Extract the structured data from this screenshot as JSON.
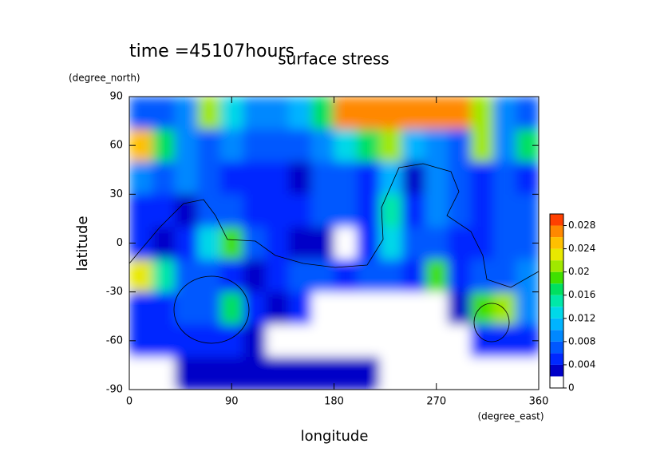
{
  "chart_data": {
    "type": "contour",
    "annotation": "time =45107hours",
    "title": "surface stress",
    "x_label": "longitude",
    "x_unit": "(degree_east)",
    "y_label": "latitude",
    "y_unit": "(degree_north)",
    "xlim": [
      0,
      360
    ],
    "xticks": [
      0,
      90,
      180,
      270,
      360
    ],
    "ylim": [
      -90,
      90
    ],
    "yticks": [
      -90,
      -60,
      -30,
      0,
      30,
      60,
      90
    ],
    "x": [
      10,
      30,
      50,
      70,
      90,
      110,
      130,
      150,
      170,
      190,
      210,
      230,
      250,
      270,
      290,
      310,
      330,
      350
    ],
    "y": [
      80,
      60,
      40,
      20,
      0,
      -20,
      -40,
      -60,
      -80
    ],
    "z": [
      [
        0.006,
        0.006,
        0.008,
        0.02,
        0.012,
        0.008,
        0.008,
        0.01,
        0.016,
        0.026,
        0.026,
        0.026,
        0.026,
        0.026,
        0.026,
        0.02,
        0.008,
        0.006
      ],
      [
        0.024,
        0.016,
        0.008,
        0.006,
        0.008,
        0.006,
        0.006,
        0.006,
        0.008,
        0.012,
        0.016,
        0.02,
        0.01,
        0.008,
        0.006,
        0.02,
        0.008,
        0.016
      ],
      [
        0.008,
        0.006,
        0.008,
        0.006,
        0.004,
        0.004,
        0.004,
        0.002,
        0.006,
        0.006,
        0.004,
        0.01,
        0.002,
        0.008,
        0.006,
        0.004,
        0.006,
        0.004
      ],
      [
        0.004,
        0.004,
        0.002,
        0.006,
        0.006,
        0.004,
        0.004,
        0.004,
        0.006,
        0.006,
        0.004,
        0.014,
        0.004,
        0.008,
        0.006,
        0.004,
        0.006,
        0.006
      ],
      [
        0.004,
        0.002,
        0.004,
        0.012,
        0.018,
        0.006,
        0.004,
        0.002,
        0.002,
        0,
        0.004,
        0.012,
        0.006,
        0.006,
        0.004,
        0.004,
        0.006,
        0.006
      ],
      [
        0.022,
        0.014,
        0.006,
        0.006,
        0.004,
        0.002,
        0.004,
        0.006,
        0.006,
        0.004,
        0.006,
        0.006,
        0.004,
        0.018,
        0.004,
        0.006,
        0.006,
        0.008
      ],
      [
        0.004,
        0.004,
        0.006,
        0.006,
        0.016,
        0.004,
        0.002,
        0.004,
        0,
        0,
        0,
        0,
        0,
        0,
        0.002,
        0.018,
        0.02,
        0.008
      ],
      [
        0.004,
        0.004,
        0.004,
        0.004,
        0.004,
        0.002,
        0,
        0,
        0,
        0,
        0,
        0,
        0,
        0,
        0,
        0.004,
        0.004,
        0.004
      ],
      [
        0,
        0,
        0.002,
        0.002,
        0.002,
        0.002,
        0.002,
        0.002,
        0.002,
        0.002,
        0.002,
        0,
        0,
        0,
        0,
        0,
        0,
        0
      ]
    ],
    "levels": [
      0,
      0.002,
      0.004,
      0.006,
      0.008,
      0.01,
      0.012,
      0.014,
      0.016,
      0.018,
      0.02,
      0.022,
      0.024,
      0.026,
      0.028,
      0.03
    ],
    "colors": [
      "#ffffff",
      "#0000c8",
      "#0028ff",
      "#0058ff",
      "#0088ff",
      "#00b4ff",
      "#00d8e8",
      "#00e8a8",
      "#00e060",
      "#40e000",
      "#a0e800",
      "#e8e800",
      "#ffc000",
      "#ff8800",
      "#ff4000"
    ],
    "colorbar_ticks": [
      0,
      0.004,
      0.008,
      0.012,
      0.016,
      0.02,
      0.024,
      0.028
    ]
  }
}
